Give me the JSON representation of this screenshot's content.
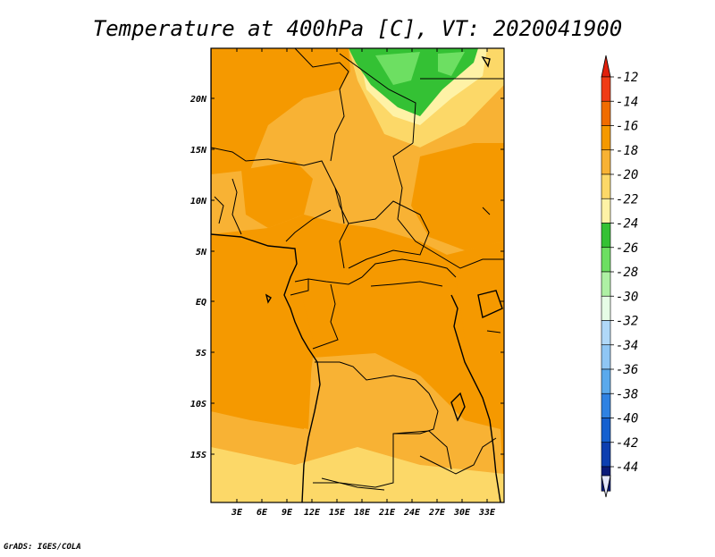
{
  "title": "Temperature at 400hPa [C], VT: 2020041900",
  "credit": "GrADS: IGES/COLA",
  "lat_labels": [
    "20N",
    "15N",
    "10N",
    "5N",
    "EQ",
    "5S",
    "10S",
    "15S"
  ],
  "lon_labels": [
    "3E",
    "6E",
    "9E",
    "12E",
    "15E",
    "18E",
    "21E",
    "24E",
    "27E",
    "30E",
    "33E"
  ],
  "colorbar": {
    "labels": [
      "-12",
      "-14",
      "-16",
      "-18",
      "-20",
      "-22",
      "-24",
      "-26",
      "-28",
      "-30",
      "-32",
      "-34",
      "-36",
      "-38",
      "-40",
      "-42",
      "-44"
    ],
    "colors": [
      "#f03c16",
      "#f06c00",
      "#f59900",
      "#f8b234",
      "#fcd868",
      "#fef2a6",
      "#34c134",
      "#6ddf62",
      "#aef0a4",
      "#e6fde6",
      "#b0d8f8",
      "#8fc6f4",
      "#5aa9ec",
      "#2f82e2",
      "#1560cf",
      "#0d3fb0",
      "#0b1a78"
    ],
    "top_cap_color": "#e1200c",
    "bottom_cap_color": "#e4e6fa"
  },
  "colors": {
    "dominant": "#f59900",
    "northern_belt": "#f8b234",
    "warm_south": "#fcd868",
    "cold_north_green": "#34c134"
  }
}
